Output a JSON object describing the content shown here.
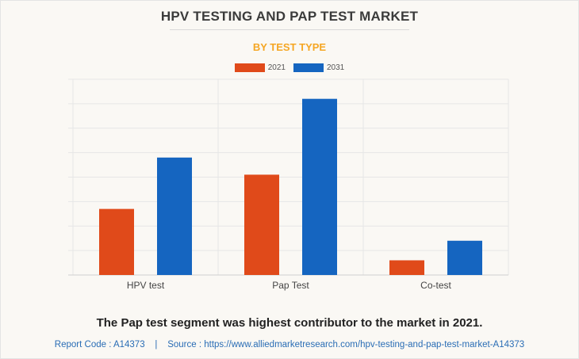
{
  "chart_data": {
    "type": "bar",
    "title": "HPV TESTING AND PAP TEST MARKET",
    "subtitle": "BY TEST TYPE",
    "categories": [
      "HPV test",
      "Pap Test",
      "Co-test"
    ],
    "series": [
      {
        "name": "2021",
        "values": [
          2.7,
          4.1,
          0.6
        ],
        "color": "#e04a1a"
      },
      {
        "name": "2031",
        "values": [
          4.8,
          7.2,
          1.4
        ],
        "color": "#1565c0"
      }
    ],
    "ylim": [
      0,
      8
    ],
    "gridlines": 8,
    "xlabel": "",
    "ylabel": "",
    "legend_position": "top-center"
  },
  "note": "The Pap test segment was highest contributor to the market in 2021.",
  "footer": {
    "report_code": "Report Code : A14373",
    "separator": "|",
    "source": "Source : https://www.alliedmarketresearch.com/hpv-testing-and-pap-test-market-A14373"
  }
}
